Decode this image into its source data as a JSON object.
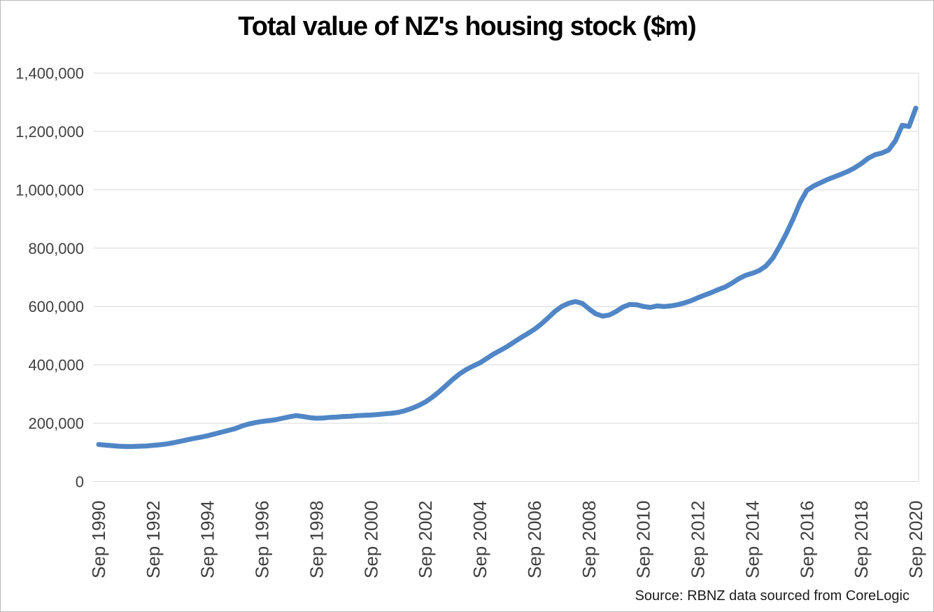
{
  "title": "Total value of NZ's housing stock ($m)",
  "source": "Source: RBNZ data sourced from CoreLogic",
  "colors": {
    "line": "#5086C6",
    "gridline": "#D9D9D9",
    "axis_text": "#404040",
    "title_text": "#000000",
    "border": "#B9B9B9",
    "background": "#FFFFFF"
  },
  "chart_data": {
    "type": "line",
    "title": "Total value of NZ's housing stock ($m)",
    "xlabel": "",
    "ylabel": "",
    "ylim": [
      0,
      1400000
    ],
    "grid": "horizontal",
    "legend": "none",
    "x_start": "Sep 1990",
    "x_end": "Sep 2020",
    "frequency": "quarterly",
    "x_tick_step_quarters": 8,
    "x_tick_labels": [
      "Sep 1990",
      "Sep 1992",
      "Sep 1994",
      "Sep 1996",
      "Sep 1998",
      "Sep 2000",
      "Sep 2002",
      "Sep 2004",
      "Sep 2006",
      "Sep 2008",
      "Sep 2010",
      "Sep 2012",
      "Sep 2014",
      "Sep 2016",
      "Sep 2018",
      "Sep 2020"
    ],
    "y_ticks": [
      0,
      200000,
      400000,
      600000,
      800000,
      1000000,
      1200000,
      1400000
    ],
    "y_tick_labels": [
      "0",
      "200,000",
      "400,000",
      "600,000",
      "800,000",
      "1,000,000",
      "1,200,000",
      "1,400,000"
    ],
    "series": [
      {
        "name": "Total value of NZ's housing stock ($m)",
        "values": [
          127000,
          125000,
          123000,
          121000,
          120000,
          120000,
          121000,
          122000,
          124000,
          126000,
          129000,
          133000,
          138000,
          143000,
          148000,
          152000,
          157000,
          163000,
          169000,
          175000,
          181000,
          190000,
          197000,
          202000,
          206000,
          209000,
          212000,
          217000,
          222000,
          226000,
          223000,
          219000,
          217000,
          218000,
          220000,
          221000,
          223000,
          224000,
          226000,
          227000,
          228000,
          230000,
          232000,
          234000,
          237000,
          243000,
          251000,
          261000,
          273000,
          289000,
          308000,
          329000,
          350000,
          369000,
          384000,
          396000,
          407000,
          422000,
          437000,
          450000,
          463000,
          478000,
          493000,
          507000,
          522000,
          540000,
          561000,
          583000,
          600000,
          611000,
          617000,
          611000,
          592000,
          575000,
          567000,
          571000,
          583000,
          598000,
          607000,
          606000,
          600000,
          597000,
          602000,
          600000,
          602000,
          606000,
          612000,
          620000,
          630000,
          639000,
          648000,
          658000,
          667000,
          680000,
          695000,
          707000,
          714000,
          723000,
          739000,
          766000,
          806000,
          851000,
          901000,
          956000,
          998000,
          1013000,
          1024000,
          1035000,
          1044000,
          1053000,
          1063000,
          1075000,
          1090000,
          1108000,
          1120000,
          1126000,
          1136000,
          1168000,
          1221000,
          1217000,
          1280000
        ]
      }
    ]
  }
}
